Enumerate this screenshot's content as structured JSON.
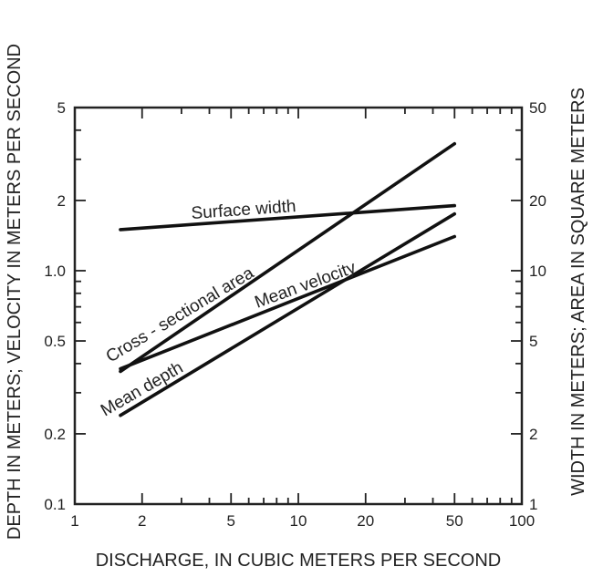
{
  "chart_data": {
    "type": "line",
    "scale": "log-log",
    "xlabel": "DISCHARGE, IN CUBIC METERS PER SECOND",
    "ylabel_left": "DEPTH IN METERS; VELOCITY IN METERS PER SECOND",
    "ylabel_right": "WIDTH IN METERS; AREA IN SQUARE METERS",
    "xlim": [
      1,
      100
    ],
    "ylim_left": [
      0.1,
      5
    ],
    "ylim_right": [
      1,
      50
    ],
    "x_ticks": [
      "1",
      "2",
      "5",
      "10",
      "20",
      "50",
      "100"
    ],
    "y_ticks_left": [
      "0.1",
      "0.2",
      "0.5",
      "1.0",
      "2",
      "5"
    ],
    "y_ticks_right": [
      "1",
      "2",
      "5",
      "10",
      "20",
      "50"
    ],
    "grid": false,
    "series": [
      {
        "name": "Surface width",
        "axis": "right",
        "x": [
          1.6,
          50
        ],
        "y": [
          15,
          19
        ]
      },
      {
        "name": "Cross - sectional area",
        "axis": "right",
        "x": [
          1.6,
          50
        ],
        "y": [
          3.7,
          35
        ]
      },
      {
        "name": "Mean velocity",
        "axis": "left",
        "x": [
          1.6,
          50
        ],
        "y": [
          0.38,
          1.4
        ]
      },
      {
        "name": "Mean depth",
        "axis": "left",
        "x": [
          1.6,
          50
        ],
        "y": [
          0.24,
          1.75
        ]
      }
    ]
  }
}
